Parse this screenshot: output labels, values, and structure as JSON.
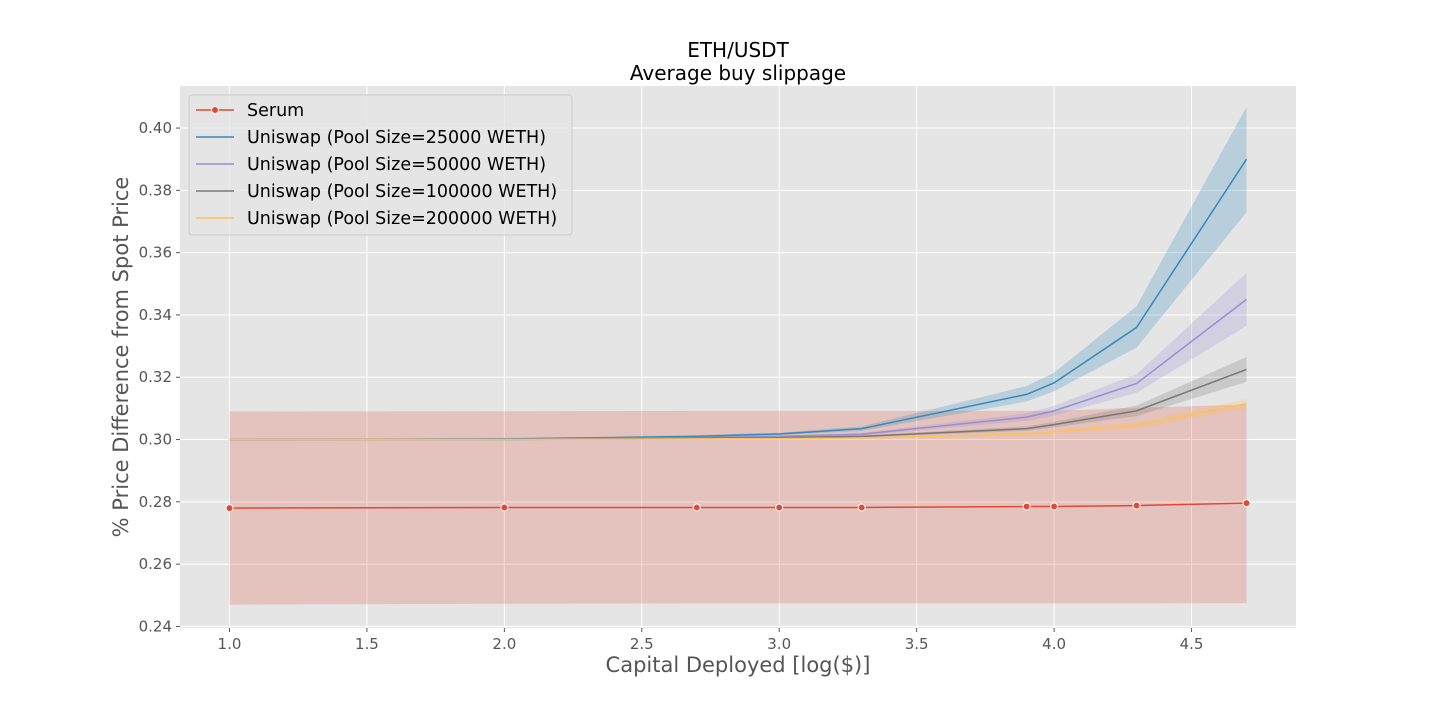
{
  "chart_data": {
    "type": "line",
    "title": "ETH/USDT",
    "subtitle": "Average buy slippage",
    "xlabel": "Capital Deployed [log($)]",
    "ylabel": "% Price Difference from Spot Price",
    "xlim": [
      0.82,
      4.88
    ],
    "ylim": [
      0.2395,
      0.4135
    ],
    "xticks": [
      1.0,
      1.5,
      2.0,
      2.5,
      3.0,
      3.5,
      4.0,
      4.5
    ],
    "xtick_labels": [
      "1.0",
      "1.5",
      "2.0",
      "2.5",
      "3.0",
      "3.5",
      "4.0",
      "4.5"
    ],
    "yticks": [
      0.24,
      0.26,
      0.28,
      0.3,
      0.32,
      0.34,
      0.36,
      0.38,
      0.4
    ],
    "ytick_labels": [
      "0.24",
      "0.26",
      "0.28",
      "0.30",
      "0.32",
      "0.34",
      "0.36",
      "0.38",
      "0.40"
    ],
    "grid": true,
    "legend_position": "top-left",
    "x": [
      1.0,
      2.0,
      2.7,
      3.0,
      3.3,
      3.9,
      4.0,
      4.3,
      4.7
    ],
    "series": [
      {
        "name": "Serum",
        "color": "#E24A33",
        "marker": true,
        "values": [
          0.278,
          0.2782,
          0.2782,
          0.2782,
          0.2782,
          0.2785,
          0.2785,
          0.2788,
          0.2796
        ],
        "lower": [
          0.247,
          0.2473,
          0.2474,
          0.2474,
          0.2474,
          0.2474,
          0.2474,
          0.2474,
          0.2475
        ],
        "upper": [
          0.309,
          0.3091,
          0.3092,
          0.3092,
          0.3092,
          0.3092,
          0.3092,
          0.3102,
          0.3112
        ]
      },
      {
        "name": "Uniswap (Pool Size=25000 WETH)",
        "color": "#348ABD",
        "marker": false,
        "values": [
          0.3,
          0.3002,
          0.301,
          0.3018,
          0.3035,
          0.3145,
          0.3182,
          0.336,
          0.39
        ],
        "lower": [
          0.2998,
          0.3,
          0.3006,
          0.3014,
          0.3028,
          0.3122,
          0.3155,
          0.3295,
          0.373
        ],
        "upper": [
          0.3002,
          0.3004,
          0.3014,
          0.3022,
          0.3042,
          0.3172,
          0.3215,
          0.3428,
          0.4068
        ]
      },
      {
        "name": "Uniswap (Pool Size=50000 WETH)",
        "color": "#988ED5",
        "marker": false,
        "values": [
          0.3,
          0.3001,
          0.3006,
          0.301,
          0.3017,
          0.3072,
          0.3092,
          0.318,
          0.345
        ],
        "lower": [
          0.2998,
          0.2999,
          0.3003,
          0.3007,
          0.3013,
          0.306,
          0.3077,
          0.315,
          0.3365
        ],
        "upper": [
          0.3002,
          0.3003,
          0.3009,
          0.3013,
          0.3021,
          0.3084,
          0.3108,
          0.321,
          0.3535
        ]
      },
      {
        "name": "Uniswap (Pool Size=100000 WETH)",
        "color": "#777777",
        "marker": false,
        "values": [
          0.3,
          0.3,
          0.3004,
          0.3006,
          0.301,
          0.3035,
          0.3048,
          0.3092,
          0.3225
        ],
        "lower": [
          0.2998,
          0.2998,
          0.3001,
          0.3003,
          0.3007,
          0.3028,
          0.3039,
          0.3075,
          0.3185
        ],
        "upper": [
          0.3002,
          0.3002,
          0.3007,
          0.3009,
          0.3013,
          0.3042,
          0.3057,
          0.3109,
          0.3265
        ]
      },
      {
        "name": "Uniswap (Pool Size=200000 WETH)",
        "color": "#FBC15E",
        "marker": false,
        "values": [
          0.3,
          0.3,
          0.3002,
          0.3003,
          0.3005,
          0.3018,
          0.3025,
          0.3045,
          0.3115
        ],
        "lower": [
          0.2998,
          0.2998,
          0.2999,
          0.3,
          0.3002,
          0.3013,
          0.3019,
          0.3035,
          0.31
        ],
        "upper": [
          0.3002,
          0.3002,
          0.3005,
          0.3006,
          0.3008,
          0.3023,
          0.3031,
          0.3055,
          0.313
        ]
      }
    ]
  }
}
